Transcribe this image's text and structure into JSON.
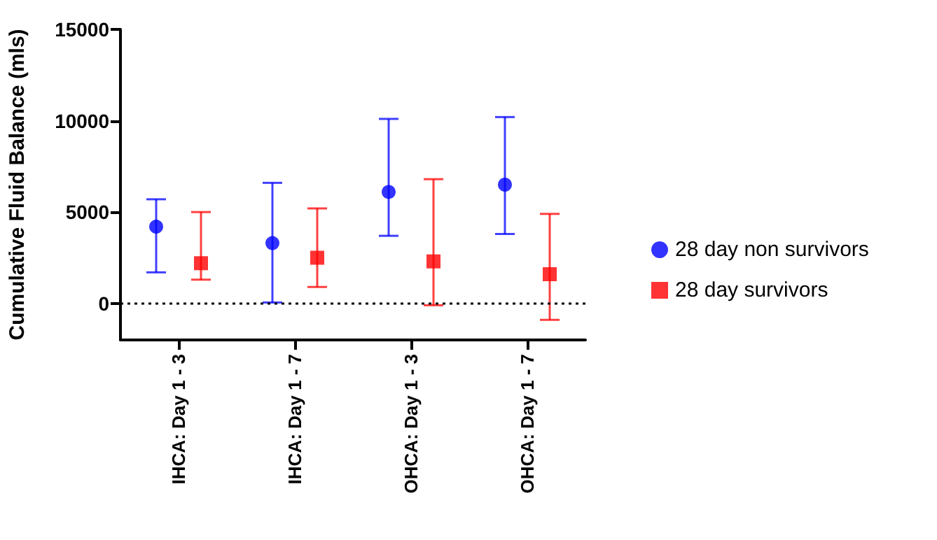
{
  "chart_data": {
    "type": "scatter",
    "ylabel": "Cumulative Fluid Balance (mls)",
    "categories": [
      "IHCA: Day 1 - 3",
      "IHCA: Day 1 - 7",
      "OHCA: Day 1 - 3",
      "OHCA: Day 1 - 7"
    ],
    "series": [
      {
        "name": "28 day non survivors",
        "color": "#0000ff",
        "marker": "circle",
        "values": [
          4200,
          3300,
          6100,
          6500
        ],
        "errors": [
          [
            1700,
            5700
          ],
          [
            50,
            6600
          ],
          [
            3700,
            10100
          ],
          [
            3800,
            10200
          ]
        ]
      },
      {
        "name": "28 day survivors",
        "color": "#ff0000",
        "marker": "square",
        "values": [
          2200,
          2500,
          2300,
          1600
        ],
        "errors": [
          [
            1300,
            5000
          ],
          [
            900,
            5200
          ],
          [
            -100,
            6800
          ],
          [
            -900,
            4900
          ]
        ]
      }
    ],
    "ylim": [
      -2000,
      15000
    ],
    "yticks": [
      0,
      5000,
      10000,
      15000
    ],
    "ref_lines": [
      {
        "axis": "y",
        "value": 0,
        "color": "#000000",
        "line_style": "dotted"
      }
    ],
    "grid": false,
    "legend": "right"
  }
}
